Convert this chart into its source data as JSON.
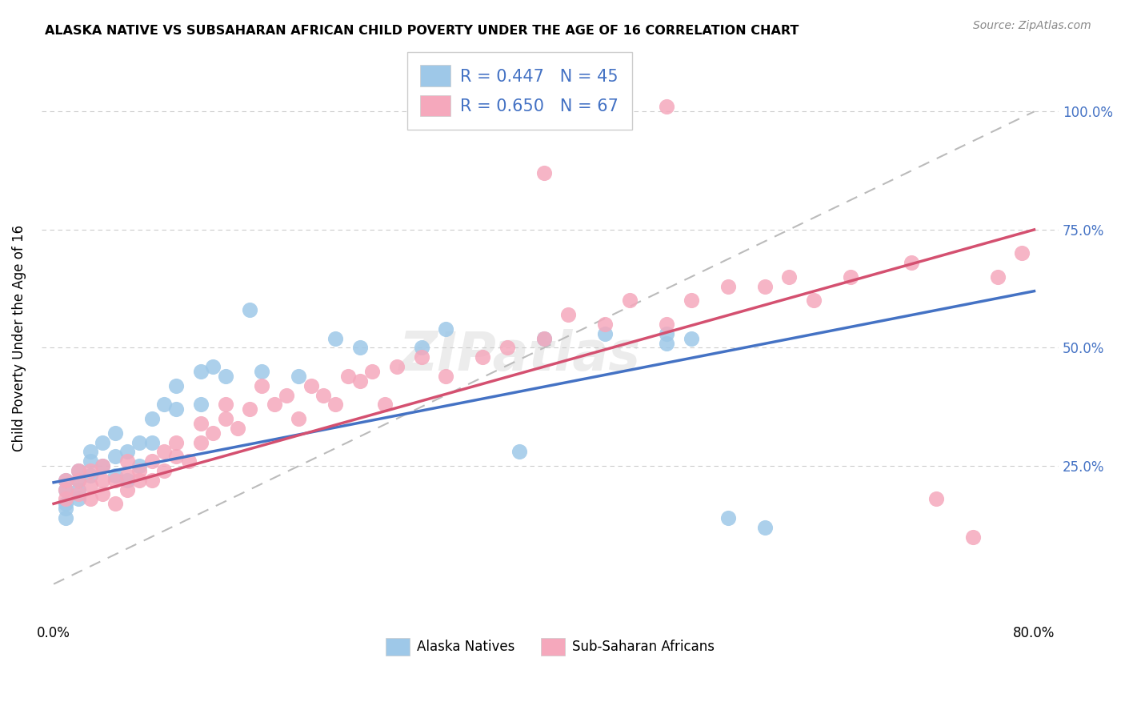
{
  "title": "ALASKA NATIVE VS SUBSAHARAN AFRICAN CHILD POVERTY UNDER THE AGE OF 16 CORRELATION CHART",
  "source": "Source: ZipAtlas.com",
  "ylabel": "Child Poverty Under the Age of 16",
  "blue_R": 0.447,
  "blue_N": 45,
  "pink_R": 0.65,
  "pink_N": 67,
  "blue_color": "#9EC8E8",
  "pink_color": "#F5A8BC",
  "blue_line_color": "#4472C4",
  "pink_line_color": "#D45070",
  "dashed_line_color": "#BBBBBB",
  "right_tick_color": "#4472C4",
  "legend_label_blue": "Alaska Natives",
  "legend_label_pink": "Sub-Saharan Africans",
  "xlim_lo": -0.01,
  "xlim_hi": 0.82,
  "ylim_lo": -0.08,
  "ylim_hi": 1.12,
  "yticks": [
    0.25,
    0.5,
    0.75,
    1.0
  ],
  "ytick_labels": [
    "25.0%",
    "50.0%",
    "75.0%",
    "100.0%"
  ],
  "xtick_lo_label": "0.0%",
  "xtick_hi_label": "80.0%",
  "grid_color": "#CCCCCC",
  "background_color": "#FFFFFF",
  "watermark": "ZIPatlas",
  "blue_line_y0": 0.215,
  "blue_line_y1": 0.62,
  "pink_line_y0": 0.17,
  "pink_line_y1": 0.75,
  "blue_x": [
    0.01,
    0.01,
    0.01,
    0.01,
    0.01,
    0.02,
    0.02,
    0.02,
    0.02,
    0.03,
    0.03,
    0.03,
    0.04,
    0.04,
    0.05,
    0.05,
    0.05,
    0.06,
    0.06,
    0.07,
    0.07,
    0.08,
    0.08,
    0.09,
    0.1,
    0.1,
    0.12,
    0.12,
    0.13,
    0.14,
    0.16,
    0.17,
    0.2,
    0.23,
    0.25,
    0.3,
    0.32,
    0.38,
    0.4,
    0.45,
    0.5,
    0.5,
    0.52,
    0.55,
    0.58
  ],
  "blue_y": [
    0.2,
    0.22,
    0.17,
    0.14,
    0.16,
    0.2,
    0.22,
    0.18,
    0.24,
    0.26,
    0.28,
    0.23,
    0.25,
    0.3,
    0.23,
    0.27,
    0.32,
    0.28,
    0.22,
    0.3,
    0.25,
    0.35,
    0.3,
    0.38,
    0.37,
    0.42,
    0.45,
    0.38,
    0.46,
    0.44,
    0.58,
    0.45,
    0.44,
    0.52,
    0.5,
    0.5,
    0.54,
    0.28,
    0.52,
    0.53,
    0.51,
    0.53,
    0.52,
    0.14,
    0.12
  ],
  "pink_x": [
    0.01,
    0.01,
    0.01,
    0.02,
    0.02,
    0.02,
    0.03,
    0.03,
    0.03,
    0.04,
    0.04,
    0.04,
    0.05,
    0.05,
    0.06,
    0.06,
    0.06,
    0.07,
    0.07,
    0.08,
    0.08,
    0.09,
    0.09,
    0.1,
    0.1,
    0.11,
    0.12,
    0.12,
    0.13,
    0.14,
    0.14,
    0.15,
    0.16,
    0.17,
    0.18,
    0.19,
    0.2,
    0.21,
    0.22,
    0.23,
    0.24,
    0.25,
    0.26,
    0.27,
    0.28,
    0.3,
    0.32,
    0.35,
    0.37,
    0.4,
    0.42,
    0.45,
    0.47,
    0.5,
    0.52,
    0.55,
    0.58,
    0.6,
    0.62,
    0.65,
    0.7,
    0.72,
    0.75,
    0.77,
    0.79,
    0.4,
    0.5
  ],
  "pink_y": [
    0.18,
    0.2,
    0.22,
    0.19,
    0.22,
    0.24,
    0.18,
    0.21,
    0.24,
    0.19,
    0.22,
    0.25,
    0.17,
    0.22,
    0.2,
    0.23,
    0.26,
    0.22,
    0.24,
    0.22,
    0.26,
    0.24,
    0.28,
    0.27,
    0.3,
    0.26,
    0.3,
    0.34,
    0.32,
    0.35,
    0.38,
    0.33,
    0.37,
    0.42,
    0.38,
    0.4,
    0.35,
    0.42,
    0.4,
    0.38,
    0.44,
    0.43,
    0.45,
    0.38,
    0.46,
    0.48,
    0.44,
    0.48,
    0.5,
    0.52,
    0.57,
    0.55,
    0.6,
    0.55,
    0.6,
    0.63,
    0.63,
    0.65,
    0.6,
    0.65,
    0.68,
    0.18,
    0.1,
    0.65,
    0.7,
    0.87,
    1.01
  ]
}
